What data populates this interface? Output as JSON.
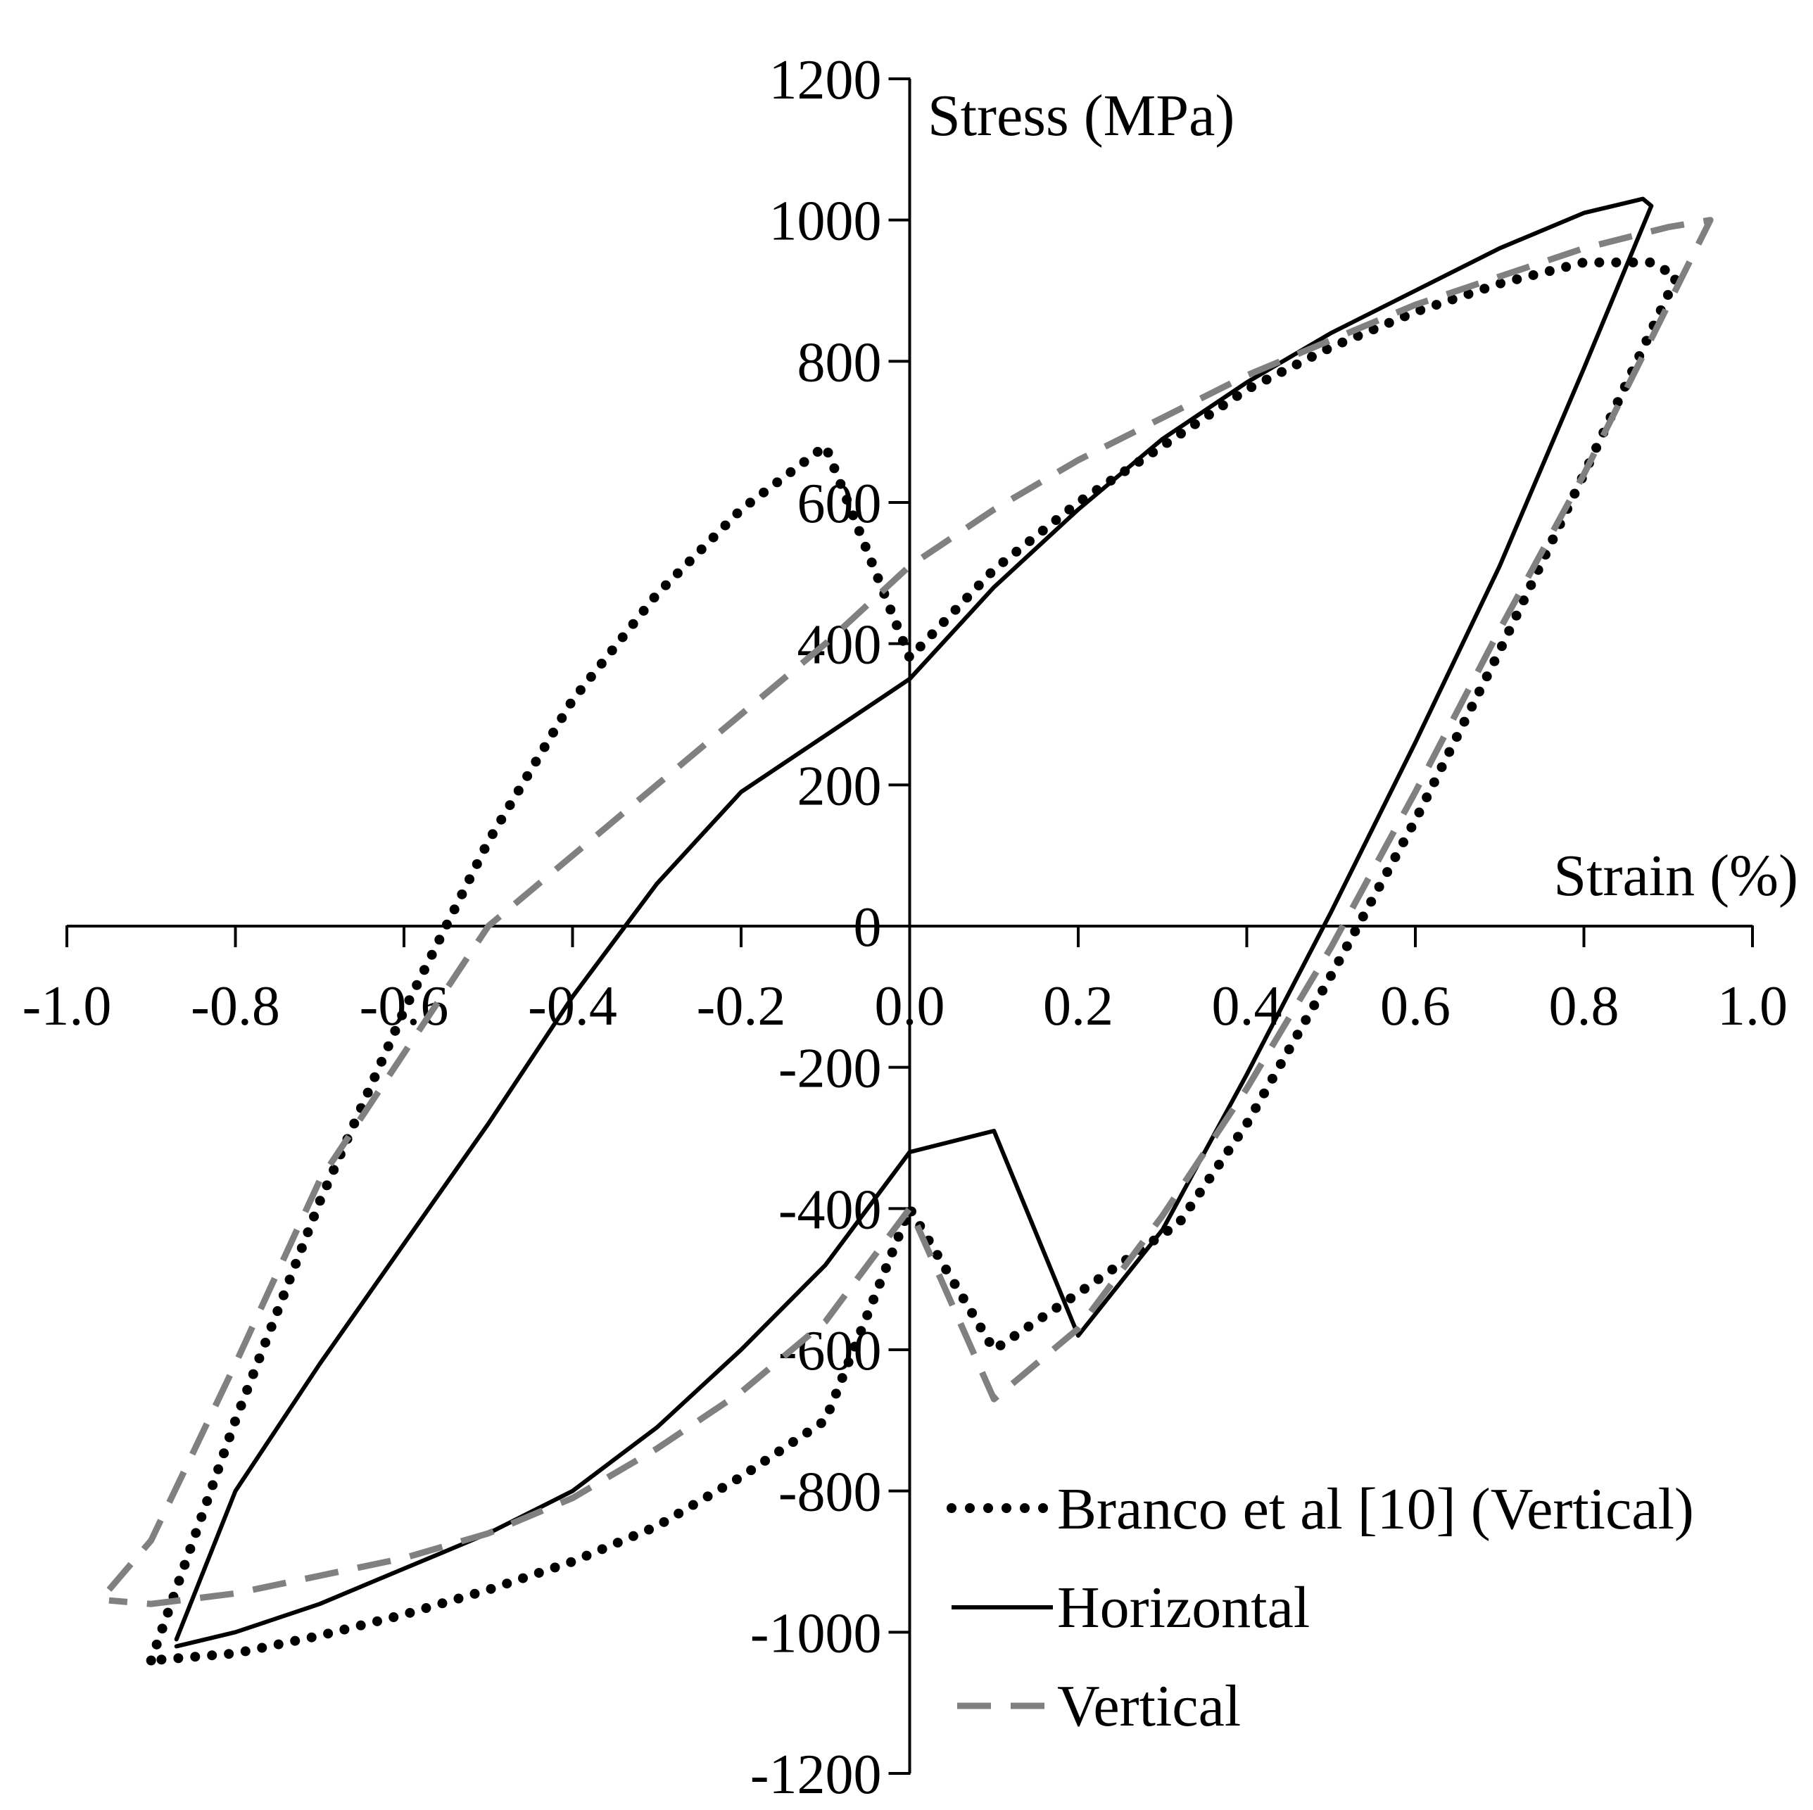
{
  "chart_data": {
    "type": "line",
    "xlabel": "Strain (%)",
    "ylabel": "Stress (MPa)",
    "xlim": [
      -1.0,
      1.0
    ],
    "ylim": [
      -1200,
      1200
    ],
    "x_ticks": [
      "-1.0",
      "-0.8",
      "-0.6",
      "-0.4",
      "-0.2",
      "0.0",
      "0.2",
      "0.4",
      "0.6",
      "0.8",
      "1.0"
    ],
    "x_tick_values": [
      -1.0,
      -0.8,
      -0.6,
      -0.4,
      -0.2,
      0.0,
      0.2,
      0.4,
      0.6,
      0.8,
      1.0
    ],
    "y_ticks": [
      "1200",
      "1000",
      "800",
      "600",
      "400",
      "200",
      "0",
      "-200",
      "-400",
      "-600",
      "-800",
      "-1000",
      "-1200"
    ],
    "y_tick_values": [
      1200,
      1000,
      800,
      600,
      400,
      200,
      0,
      -200,
      -400,
      -600,
      -800,
      -1000,
      -1200
    ],
    "grid": false,
    "legend_position": "bottom-right",
    "series": [
      {
        "name": "Branco et al [10] (Vertical)",
        "style": "dotted",
        "color": "#000000",
        "x": [
          -0.9,
          -0.8,
          -0.7,
          -0.6,
          -0.5,
          -0.4,
          -0.3,
          -0.2,
          -0.1,
          0.0,
          0.1,
          0.2,
          0.3,
          0.4,
          0.5,
          0.6,
          0.7,
          0.8,
          0.88,
          0.91,
          0.8,
          0.7,
          0.6,
          0.5,
          0.4,
          0.32,
          0.2,
          0.1,
          0.0,
          -0.1,
          -0.2,
          -0.3,
          -0.4,
          -0.5,
          -0.6,
          -0.7,
          -0.8,
          -0.9
        ],
        "y": [
          -1040,
          -700,
          -390,
          -120,
          120,
          320,
          470,
          590,
          680,
          380,
          505,
          600,
          680,
          760,
          820,
          870,
          910,
          940,
          940,
          920,
          640,
          390,
          150,
          -70,
          -280,
          -420,
          -520,
          -600,
          -400,
          -700,
          -780,
          -850,
          -900,
          -940,
          -975,
          -1005,
          -1030,
          -1040
        ]
      },
      {
        "name": "Horizontal",
        "style": "solid",
        "color": "#000000",
        "x": [
          -0.87,
          -0.8,
          -0.7,
          -0.6,
          -0.5,
          -0.4,
          -0.3,
          -0.2,
          -0.1,
          0.0,
          0.1,
          0.2,
          0.3,
          0.4,
          0.5,
          0.6,
          0.7,
          0.8,
          0.87,
          0.88,
          0.8,
          0.7,
          0.6,
          0.5,
          0.4,
          0.3,
          0.2,
          0.1,
          0.0,
          -0.1,
          -0.2,
          -0.3,
          -0.4,
          -0.5,
          -0.6,
          -0.7,
          -0.8,
          -0.87
        ],
        "y": [
          -1010,
          -800,
          -620,
          -450,
          -280,
          -100,
          60,
          190,
          270,
          350,
          480,
          590,
          690,
          770,
          840,
          900,
          960,
          1010,
          1030,
          1020,
          790,
          510,
          260,
          20,
          -210,
          -430,
          -580,
          -290,
          -320,
          -480,
          -600,
          -710,
          -800,
          -860,
          -910,
          -960,
          -1000,
          -1020
        ]
      },
      {
        "name": "Vertical",
        "style": "dashed",
        "color": "#808080",
        "x": [
          -0.95,
          -0.9,
          -0.8,
          -0.7,
          -0.6,
          -0.5,
          -0.42,
          -0.3,
          -0.2,
          -0.1,
          0.0,
          0.1,
          0.2,
          0.3,
          0.4,
          0.5,
          0.6,
          0.7,
          0.8,
          0.9,
          0.95,
          0.9,
          0.8,
          0.7,
          0.6,
          0.5,
          0.4,
          0.3,
          0.2,
          0.1,
          0.0,
          -0.1,
          -0.2,
          -0.3,
          -0.4,
          -0.5,
          -0.6,
          -0.7,
          -0.8,
          -0.9,
          -0.95
        ],
        "y": [
          -940,
          -870,
          -620,
          -360,
          -180,
          0,
          80,
          200,
          300,
          400,
          510,
          590,
          660,
          720,
          780,
          830,
          880,
          920,
          960,
          990,
          1000,
          880,
          640,
          420,
          190,
          -30,
          -230,
          -410,
          -570,
          -670,
          -400,
          -560,
          -660,
          -740,
          -810,
          -860,
          -895,
          -920,
          -945,
          -960,
          -955
        ]
      }
    ]
  }
}
